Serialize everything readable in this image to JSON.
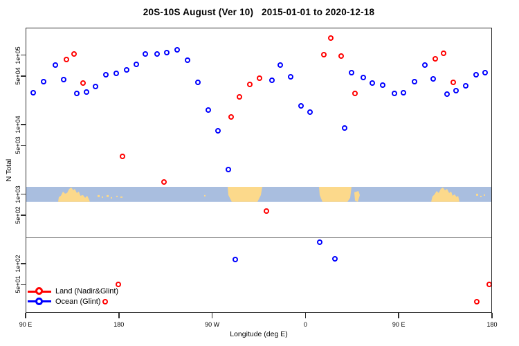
{
  "figure": {
    "title": "20S-10S August (Ver 10)   2015-01-01 to 2020-12-18"
  },
  "chart_data": {
    "type": "scatter",
    "title": "20S-10S August (Ver 10)  2015-01-01 to 2020-12-18",
    "xlabel": "Longitude (deg E)",
    "ylabel": "N Total",
    "grid": false,
    "x_axis": {
      "mode": "longitude-wrapping-east-from-90E",
      "start_axis_deg": 90,
      "end_axis_deg": 540,
      "ticks": [
        {
          "axis_deg": 90,
          "label": "90 E"
        },
        {
          "axis_deg": 180,
          "label": "180"
        },
        {
          "axis_deg": 270,
          "label": "90 W"
        },
        {
          "axis_deg": 360,
          "label": "0"
        },
        {
          "axis_deg": 450,
          "label": "90 E"
        },
        {
          "axis_deg": 540,
          "label": "180"
        }
      ]
    },
    "y_axis": {
      "scale": "log",
      "range": [
        20,
        250000
      ],
      "ticks": [
        {
          "value": 100000,
          "label": "1e+05"
        },
        {
          "value": 50000,
          "label": "5e+04"
        },
        {
          "value": 10000,
          "label": "1e+04"
        },
        {
          "value": 5000,
          "label": "5e+03"
        },
        {
          "value": 1000,
          "label": "1e+03"
        },
        {
          "value": 500,
          "label": "5e+02"
        },
        {
          "value": 100,
          "label": "1e+02"
        },
        {
          "value": 50,
          "label": "5e+01"
        }
      ]
    },
    "reference_line": {
      "value": 237,
      "color": "#7e7e7e"
    },
    "map_strip": {
      "description": "land/ocean world-map band overlay for latitude 20S-10S",
      "value_top": 1270,
      "value_bottom": 770,
      "ocean_color": "#a9bedf",
      "land_color": "#fcd98b"
    },
    "series": [
      {
        "name": "Land (Nadir&Glint)",
        "color": "#ff0000",
        "marker": "open-circle",
        "points": [
          {
            "lon": 130,
            "n": 85000
          },
          {
            "lon": 137,
            "n": 103000
          },
          {
            "lon": 146,
            "n": 39000
          },
          {
            "lon": 167,
            "n": 28
          },
          {
            "lon": 180,
            "n": 50
          },
          {
            "lon": 184,
            "n": 3400
          },
          {
            "lon": 224,
            "n": 1480
          },
          {
            "lon": 289,
            "n": 12600
          },
          {
            "lon": 297,
            "n": 24400
          },
          {
            "lon": 307,
            "n": 37500
          },
          {
            "lon": 316,
            "n": 46000
          },
          {
            "lon": 323,
            "n": 560
          },
          {
            "lon": 378,
            "n": 100000
          },
          {
            "lon": 385,
            "n": 171000
          },
          {
            "lon": 395,
            "n": 95000
          },
          {
            "lon": 408,
            "n": 27600
          },
          {
            "lon": 486,
            "n": 87000
          },
          {
            "lon": 494,
            "n": 105000
          },
          {
            "lon": 503,
            "n": 39500
          },
          {
            "lon": 526,
            "n": 28
          },
          {
            "lon": 538,
            "n": 50
          }
        ]
      },
      {
        "name": "Ocean (Glint)",
        "color": "#0000ff",
        "marker": "open-circle",
        "points": [
          {
            "lon": 98,
            "n": 28000
          },
          {
            "lon": 108,
            "n": 41000
          },
          {
            "lon": 119,
            "n": 71000
          },
          {
            "lon": 127,
            "n": 44000
          },
          {
            "lon": 140,
            "n": 27400
          },
          {
            "lon": 149,
            "n": 29200
          },
          {
            "lon": 158,
            "n": 34500
          },
          {
            "lon": 168,
            "n": 51000
          },
          {
            "lon": 178,
            "n": 53600
          },
          {
            "lon": 188,
            "n": 60000
          },
          {
            "lon": 197,
            "n": 72200
          },
          {
            "lon": 206,
            "n": 101000
          },
          {
            "lon": 217,
            "n": 103000
          },
          {
            "lon": 227,
            "n": 107000
          },
          {
            "lon": 237,
            "n": 117000
          },
          {
            "lon": 247,
            "n": 82000
          },
          {
            "lon": 257,
            "n": 40000
          },
          {
            "lon": 267,
            "n": 15800
          },
          {
            "lon": 276,
            "n": 7950
          },
          {
            "lon": 286,
            "n": 2200
          },
          {
            "lon": 293,
            "n": 112
          },
          {
            "lon": 328,
            "n": 42700
          },
          {
            "lon": 336,
            "n": 70200
          },
          {
            "lon": 346,
            "n": 47800
          },
          {
            "lon": 356,
            "n": 18400
          },
          {
            "lon": 365,
            "n": 15000
          },
          {
            "lon": 374,
            "n": 200
          },
          {
            "lon": 389,
            "n": 116
          },
          {
            "lon": 398,
            "n": 8700
          },
          {
            "lon": 405,
            "n": 54500
          },
          {
            "lon": 416,
            "n": 47100
          },
          {
            "lon": 425,
            "n": 38600
          },
          {
            "lon": 435,
            "n": 36600
          },
          {
            "lon": 446,
            "n": 27600
          },
          {
            "lon": 455,
            "n": 28100
          },
          {
            "lon": 466,
            "n": 41100
          },
          {
            "lon": 476,
            "n": 71300
          },
          {
            "lon": 484,
            "n": 44300
          },
          {
            "lon": 497,
            "n": 27000
          },
          {
            "lon": 506,
            "n": 29900
          },
          {
            "lon": 515,
            "n": 35300
          },
          {
            "lon": 525,
            "n": 51800
          },
          {
            "lon": 534,
            "n": 54500
          }
        ]
      }
    ],
    "legend": {
      "position": "bottom-left",
      "items": [
        "Land (Nadir&Glint)",
        "Ocean (Glint)"
      ]
    }
  }
}
